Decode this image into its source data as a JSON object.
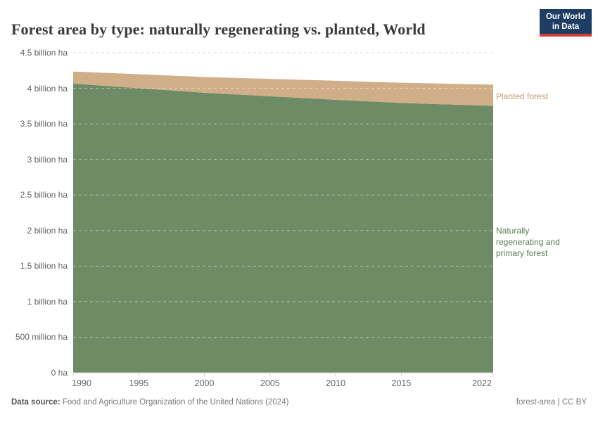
{
  "header": {
    "title": "Forest area by type: naturally regenerating vs. planted, World",
    "logo": {
      "line1": "Our World",
      "line2": "in Data",
      "bg_color": "#1d3d63",
      "accent_color": "#d93a34"
    }
  },
  "chart_data": {
    "type": "area",
    "stacked": true,
    "title": "Forest area by type: naturally regenerating vs. planted, World",
    "unit": "ha",
    "x": [
      1990,
      1995,
      2000,
      2005,
      2010,
      2015,
      2020,
      2022
    ],
    "series": [
      {
        "name": "Naturally regenerating and primary forest",
        "color": "#6d8b64",
        "label_color": "#567d4e",
        "values_billion_ha": [
          4.066,
          4.002,
          3.938,
          3.888,
          3.839,
          3.794,
          3.765,
          3.754
        ]
      },
      {
        "name": "Planted forest",
        "color": "#d0af88",
        "label_color": "#bf9a71",
        "values_billion_ha": [
          0.17,
          0.196,
          0.221,
          0.244,
          0.268,
          0.284,
          0.294,
          0.297
        ]
      }
    ],
    "xlim": [
      1990,
      2022
    ],
    "ylim": [
      0,
      4.5
    ],
    "x_ticks": [
      1990,
      1995,
      2000,
      2005,
      2010,
      2015,
      2022
    ],
    "y_ticks": [
      {
        "value": 0,
        "label": "0 ha"
      },
      {
        "value": 0.5,
        "label": "500 million ha"
      },
      {
        "value": 1,
        "label": "1 billion ha"
      },
      {
        "value": 1.5,
        "label": "1.5 billion ha"
      },
      {
        "value": 2,
        "label": "2 billion ha"
      },
      {
        "value": 2.5,
        "label": "2.5 billion ha"
      },
      {
        "value": 3,
        "label": "3 billion ha"
      },
      {
        "value": 3.5,
        "label": "3.5 billion ha"
      },
      {
        "value": 4,
        "label": "4 billion ha"
      },
      {
        "value": 4.5,
        "label": "4.5 billion ha"
      }
    ],
    "grid": "dashed",
    "legend_position": "right-annotations",
    "colors": {
      "axis_line": "#cccccc",
      "grid_outside": "#dddddd",
      "grid_inside": "rgba(255,255,255,0.45)",
      "tick_text": "#666666"
    }
  },
  "footer": {
    "source_prefix": "Data source:",
    "source_text": " Food and Agriculture Organization of the United Nations (2024)",
    "slug": "forest-area",
    "divider": " | ",
    "license": "CC BY"
  }
}
